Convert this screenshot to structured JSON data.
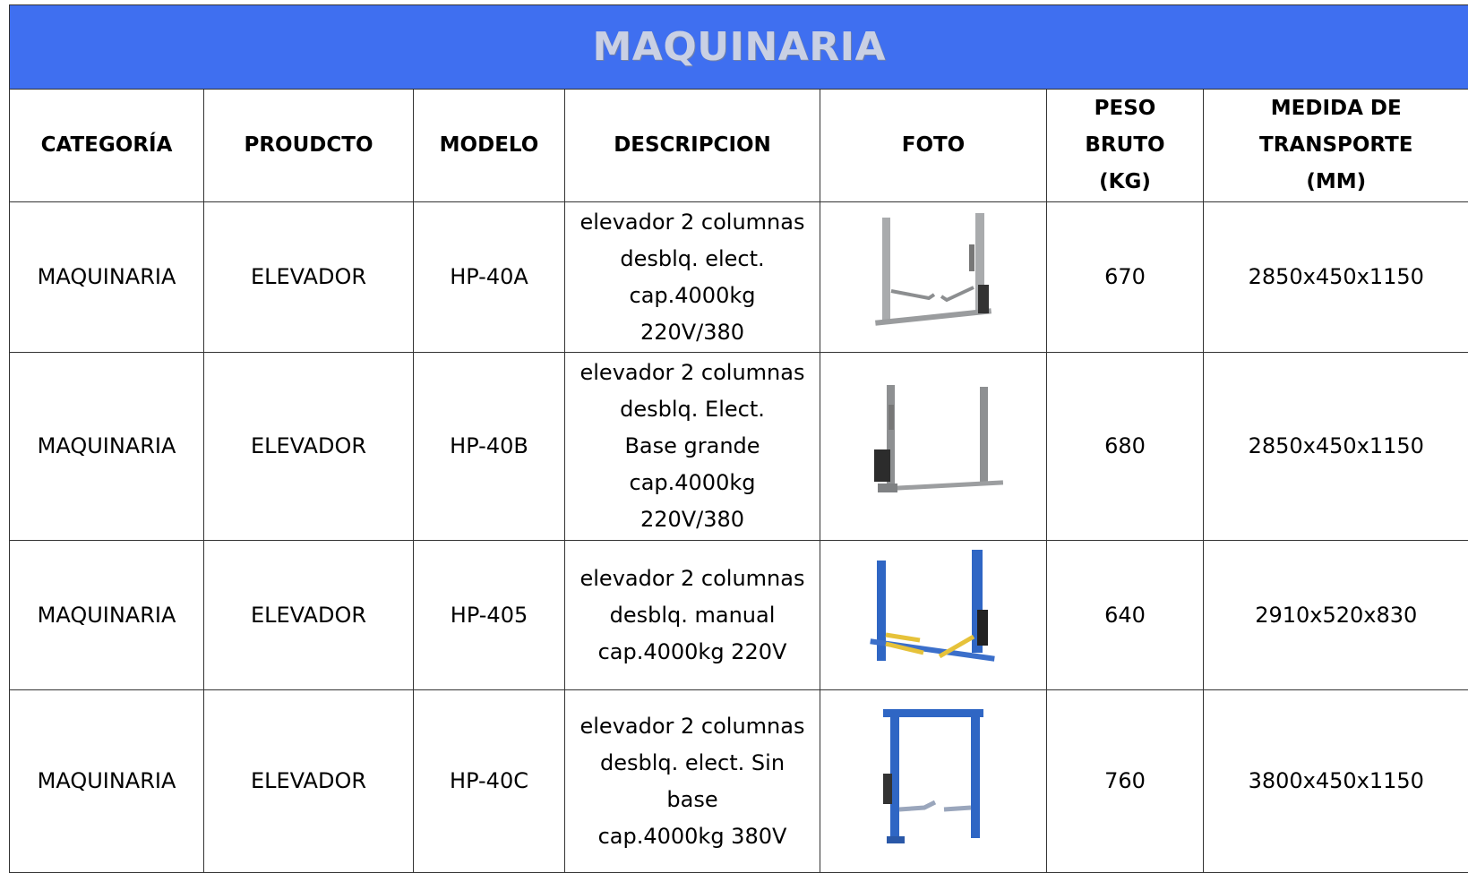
{
  "header": {
    "title": "MAQUINARIA"
  },
  "table": {
    "columns": [
      [
        "CATEGORÍA"
      ],
      [
        "PROUDCTO"
      ],
      [
        "MODELO"
      ],
      [
        "DESCRIPCION"
      ],
      [
        "FOTO"
      ],
      [
        "PESO",
        "BRUTO",
        "(KG)"
      ],
      [
        "MEDIDA DE",
        "TRANSPORTE",
        "(MM)"
      ]
    ],
    "rows": [
      {
        "categoria": "MAQUINARIA",
        "producto": "ELEVADOR",
        "modelo": "HP-40A",
        "descripcion": [
          "elevador 2 columnas",
          "desblq. elect.",
          "cap.4000kg",
          "220V/380"
        ],
        "peso": 670,
        "medida": "2850x450x1150"
      },
      {
        "categoria": "MAQUINARIA",
        "producto": "ELEVADOR",
        "modelo": "HP-40B",
        "descripcion": [
          "elevador 2 columnas",
          "desblq. Elect.",
          "Base grande",
          "cap.4000kg",
          "220V/380"
        ],
        "peso": 680,
        "medida": "2850x450x1150"
      },
      {
        "categoria": "MAQUINARIA",
        "producto": "ELEVADOR",
        "modelo": "HP-405",
        "descripcion": [
          "elevador 2 columnas",
          "desblq. manual",
          "cap.4000kg 220V"
        ],
        "peso": 640,
        "medida": "2910x520x830"
      },
      {
        "categoria": "MAQUINARIA",
        "producto": "ELEVADOR",
        "modelo": "HP-40C",
        "descripcion": [
          "elevador 2 columnas",
          "desblq. elect. Sin",
          "base",
          "cap.4000kg 380V"
        ],
        "peso": 760,
        "medida": "3800x450x1150"
      }
    ]
  }
}
